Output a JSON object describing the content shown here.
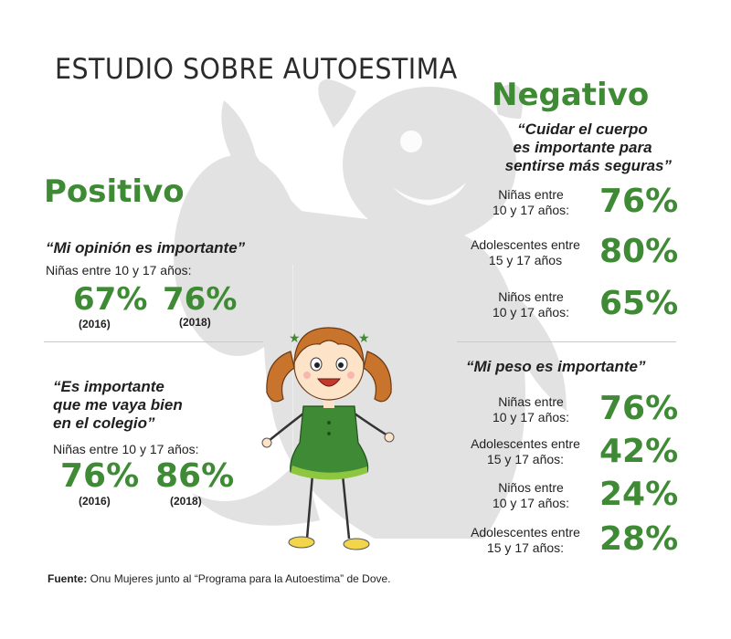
{
  "title": "ESTUDIO SOBRE AUTOESTIMA",
  "colors": {
    "accent_green": "#3f8a35",
    "shadow_gray": "#e0e0e0",
    "text": "#1f1f1f"
  },
  "positivo": {
    "heading": "Positivo",
    "block1": {
      "quote": "“Mi opinión es importante”",
      "group": "Niñas entre 10 y 17 años:",
      "stats": [
        {
          "value": "67%",
          "year": "(2016)"
        },
        {
          "value": "76%",
          "year": "(2018)"
        }
      ]
    },
    "block2": {
      "quote_lines": [
        "“Es importante",
        "que me vaya bien",
        "en el colegio”"
      ],
      "group": "Niñas entre 10 y 17 años:",
      "stats": [
        {
          "value": "76%",
          "year": "(2016)"
        },
        {
          "value": "86%",
          "year": "(2018)"
        }
      ]
    }
  },
  "negativo": {
    "heading": "Negativo",
    "block1": {
      "quote_lines": [
        "“Cuidar el cuerpo",
        "es importante para",
        "sentirse más seguras”"
      ],
      "rows": [
        {
          "label_lines": [
            "Niñas entre",
            "10 y 17 años:"
          ],
          "value": "76%"
        },
        {
          "label_lines": [
            "Adolescentes entre",
            "15 y 17 años"
          ],
          "value": "80%"
        },
        {
          "label_lines": [
            "Niños entre",
            "10 y 17 años:"
          ],
          "value": "65%"
        }
      ]
    },
    "block2": {
      "quote": "“Mi peso es importante”",
      "rows": [
        {
          "label_lines": [
            "Niñas entre",
            "10 y 17 años:"
          ],
          "value": "76%"
        },
        {
          "label_lines": [
            "Adolescentes entre",
            "15 y 17 años:"
          ],
          "value": "42%"
        },
        {
          "label_lines": [
            "Niños entre",
            "10 y 17 años:"
          ],
          "value": "24%"
        },
        {
          "label_lines": [
            "Adolescentes entre",
            "15 y 17 años:"
          ],
          "value": "28%"
        }
      ]
    }
  },
  "footer": {
    "label": "Fuente:",
    "text": " Onu Mujeres junto al “Programa para la Autoestima” de Dove."
  },
  "illustration": {
    "icon": "girl-illustration",
    "shadow_icon": "monster-shadow"
  }
}
